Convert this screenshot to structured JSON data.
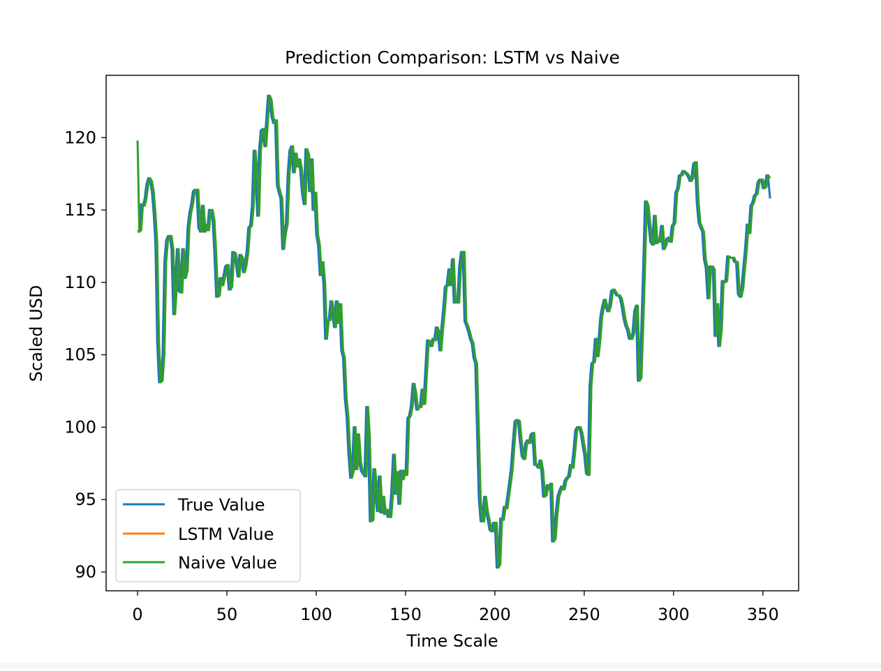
{
  "chart_data": {
    "type": "line",
    "title": "Prediction Comparison: LSTM vs Naive",
    "xlabel": "Time Scale",
    "ylabel": "Scaled USD",
    "xlim": [
      -17.6,
      370.0
    ],
    "ylim": [
      88.7,
      124.3
    ],
    "xticks": [
      0,
      50,
      100,
      150,
      200,
      250,
      300,
      350
    ],
    "yticks": [
      90,
      95,
      100,
      105,
      110,
      115,
      120
    ],
    "grid": false,
    "legend_position": "lower-left",
    "colors": {
      "true": "#1f77b4",
      "lstm": "#ff7f0e",
      "naive": "#2ca02c"
    },
    "true_values": [
      113.5,
      113.6,
      115.4,
      115.3,
      115.8,
      116.8,
      117.2,
      117.0,
      116.3,
      114.8,
      112.7,
      105.8,
      103.1,
      103.2,
      105.0,
      111.4,
      112.9,
      113.2,
      113.2,
      112.3,
      107.8,
      109.8,
      112.3,
      109.4,
      109.3,
      112.3,
      110.3,
      110.8,
      113.8,
      114.8,
      115.4,
      116.3,
      116.4,
      116.4,
      113.8,
      113.5,
      115.3,
      113.5,
      114.0,
      113.6,
      115.0,
      115.0,
      114.3,
      112.0,
      109.0,
      109.1,
      110.3,
      109.8,
      110.4,
      111.1,
      111.2,
      109.5,
      109.7,
      112.1,
      112.0,
      111.3,
      110.4,
      111.9,
      111.7,
      110.7,
      111.2,
      112.1,
      113.8,
      113.9,
      115.3,
      119.1,
      117.6,
      114.6,
      119.1,
      120.5,
      120.6,
      119.4,
      121.2,
      122.9,
      122.6,
      121.4,
      121.0,
      121.2,
      116.7,
      116.2,
      115.8,
      112.3,
      113.4,
      114.0,
      117.4,
      119.1,
      119.4,
      117.6,
      118.9,
      118.0,
      118.5,
      117.8,
      116.2,
      115.4,
      119.2,
      118.8,
      116.3,
      118.5,
      115.0,
      116.2,
      113.3,
      112.6,
      110.5,
      111.4,
      109.9,
      106.1,
      107.4,
      107.4,
      108.7,
      107.8,
      106.9,
      108.7,
      107.2,
      108.5,
      105.3,
      104.8,
      102.0,
      100.7,
      98.2,
      96.5,
      97.0,
      100.0,
      97.1,
      99.5,
      97.6,
      97.0,
      96.8,
      96.6,
      101.4,
      99.3,
      93.5,
      93.6,
      97.1,
      95.6,
      94.2,
      96.6,
      94.1,
      95.2,
      94.0,
      94.3,
      93.8,
      93.8,
      95.5,
      98.1,
      95.4,
      96.9,
      94.7,
      97.0,
      96.4,
      97.0,
      96.7,
      100.6,
      100.8,
      101.5,
      103.0,
      102.3,
      101.2,
      101.4,
      101.4,
      102.6,
      101.6,
      103.8,
      106.0,
      105.9,
      105.6,
      106.1,
      106.0,
      106.9,
      106.5,
      105.3,
      106.8,
      108.1,
      109.7,
      109.8,
      110.9,
      109.8,
      111.6,
      108.6,
      108.8,
      108.6,
      111.1,
      112.1,
      112.1,
      107.3,
      107.0,
      106.6,
      106.1,
      105.8,
      104.8,
      104.4,
      99.8,
      95.1,
      93.5,
      93.5,
      95.2,
      94.2,
      93.6,
      92.9,
      92.8,
      93.4,
      93.4,
      90.3,
      90.5,
      93.7,
      93.6,
      94.5,
      94.4,
      95.3,
      96.2,
      97.2,
      98.9,
      100.4,
      100.5,
      100.4,
      99.0,
      98.0,
      97.8,
      98.9,
      99.1,
      98.9,
      99.5,
      99.6,
      97.4,
      97.4,
      97.2,
      97.7,
      97.0,
      95.2,
      95.3,
      96.0,
      95.7,
      96.1,
      92.1,
      92.3,
      94.0,
      95.2,
      95.6,
      95.9,
      95.7,
      96.3,
      96.5,
      96.6,
      97.4,
      97.2,
      98.4,
      99.8,
      100.0,
      100.0,
      99.6,
      98.8,
      98.1,
      96.8,
      96.7,
      102.9,
      104.4,
      104.5,
      106.1,
      104.9,
      106.0,
      107.6,
      108.3,
      108.8,
      108.3,
      108.0,
      108.4,
      109.4,
      109.5,
      109.3,
      109.1,
      109.1,
      108.9,
      108.3,
      107.5,
      107.0,
      106.7,
      106.1,
      106.1,
      106.5,
      108.0,
      108.4,
      103.2,
      103.4,
      107.0,
      111.0,
      115.6,
      115.3,
      114.0,
      112.8,
      112.6,
      114.6,
      112.7,
      113.0,
      112.8,
      113.9,
      112.3,
      112.6,
      113.0,
      113.1,
      112.8,
      113.9,
      114.1,
      116.2,
      116.5,
      117.4,
      117.4,
      117.7,
      117.6,
      117.5,
      117.3,
      117.0,
      117.2,
      118.2,
      118.3,
      115.5,
      114.1,
      113.8,
      113.5,
      111.6,
      111.0,
      108.9,
      111.1,
      111.1,
      110.9,
      106.3,
      108.5,
      105.6,
      106.8,
      110.1,
      110.0,
      110.1,
      111.8,
      111.7,
      111.7,
      111.7,
      111.4,
      111.4,
      109.2,
      109.0,
      109.6,
      111.0,
      112.3,
      114.0,
      113.4,
      115.3,
      115.5,
      116.0,
      116.1,
      116.9,
      117.1,
      117.1,
      116.5,
      116.6,
      117.4,
      117.2,
      115.8
    ],
    "lstm_offset": 1,
    "naive_offset": 1,
    "legend": [
      "True Value",
      "LSTM Value",
      "Naive Value"
    ]
  }
}
